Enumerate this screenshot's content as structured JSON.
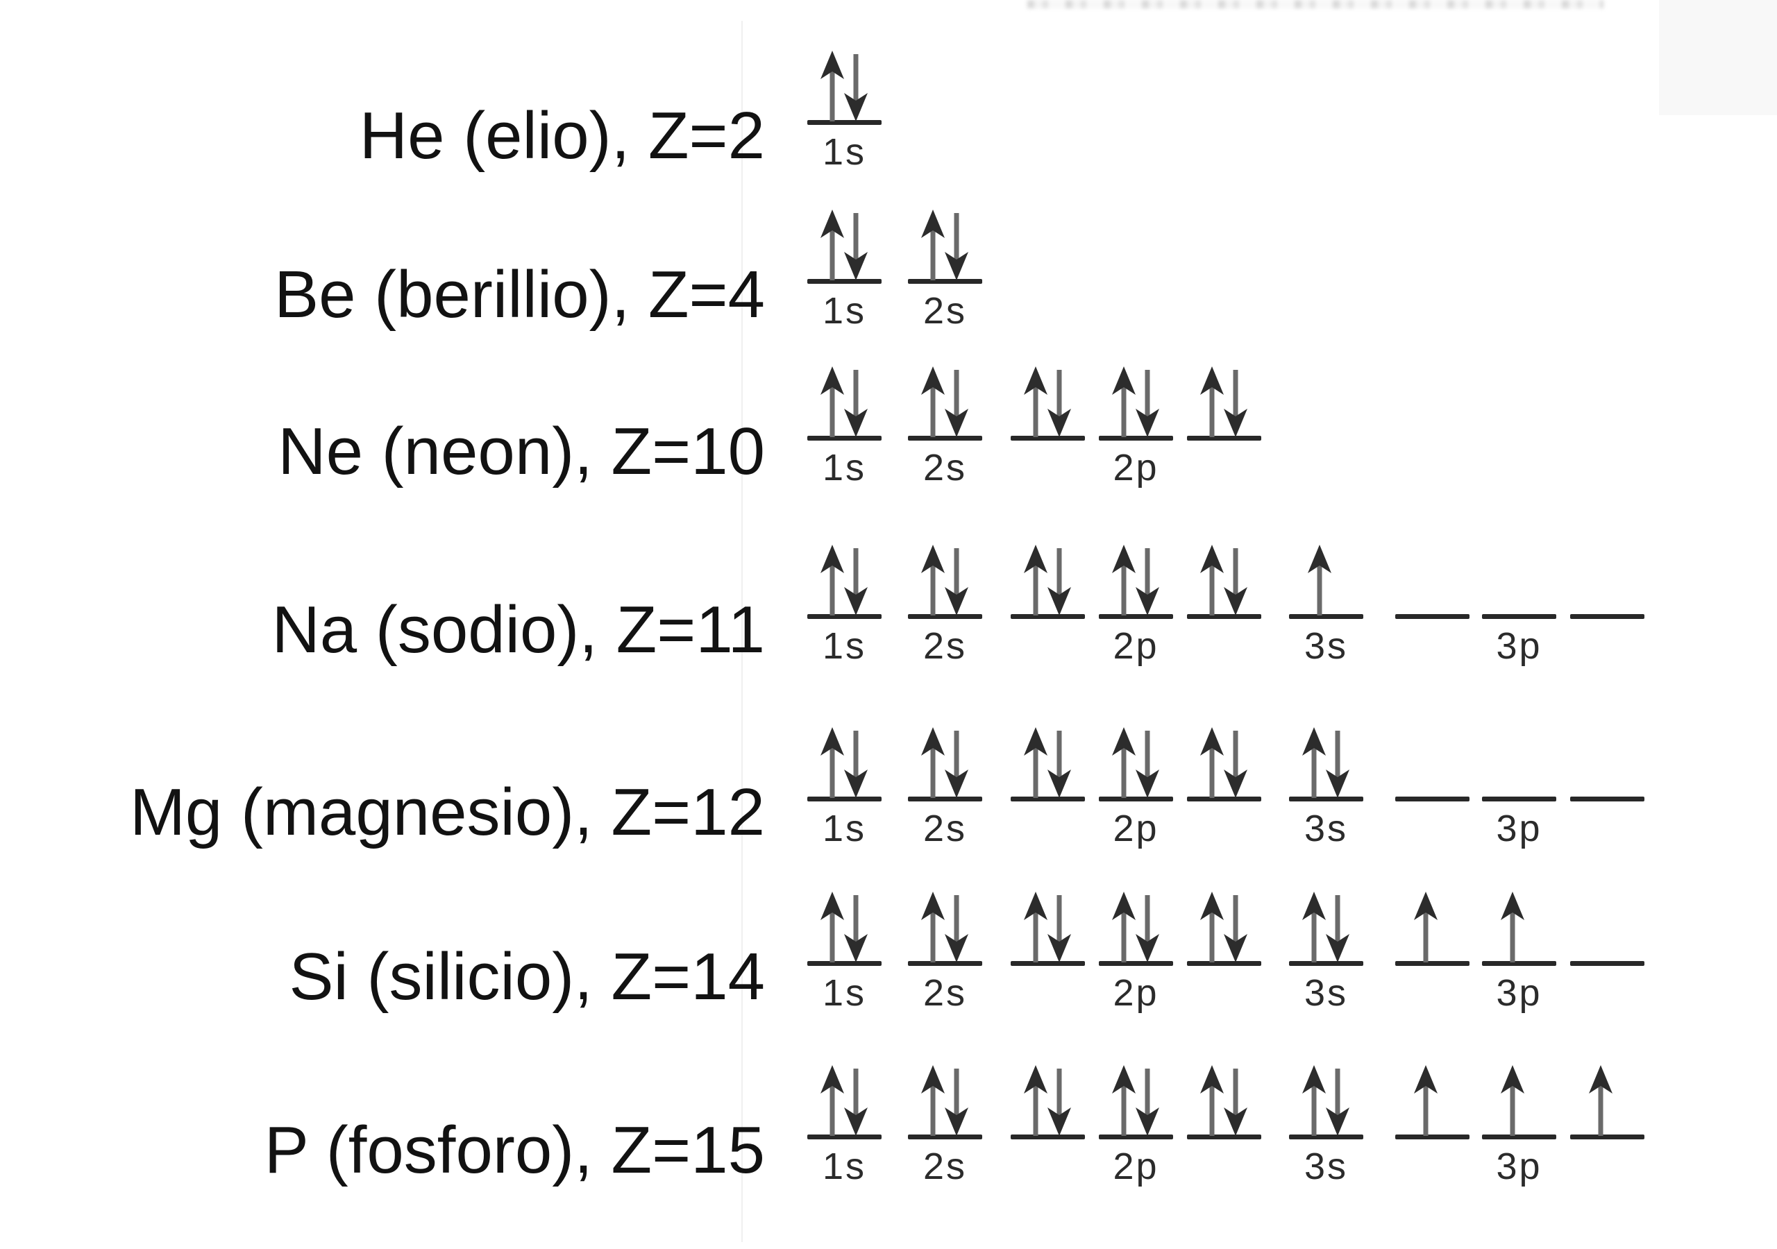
{
  "diagram": {
    "type": "orbital-box-diagram",
    "language": "it",
    "shells": [
      "1s",
      "2s",
      "2p",
      "3s",
      "3p"
    ],
    "columns": [
      {
        "id": "1s",
        "shell_label": "1s"
      },
      {
        "id": "2s",
        "shell_label": "2s"
      },
      {
        "id": "2p-1",
        "shell_label": null
      },
      {
        "id": "2p-2",
        "shell_label": "2p"
      },
      {
        "id": "2p-3",
        "shell_label": null
      },
      {
        "id": "3s",
        "shell_label": "3s"
      },
      {
        "id": "3p-1",
        "shell_label": null
      },
      {
        "id": "3p-2",
        "shell_label": "3p"
      },
      {
        "id": "3p-3",
        "shell_label": null
      }
    ],
    "rows": [
      {
        "symbol": "He",
        "label": "He (elio), Z=2",
        "z": 2,
        "fills": [
          "paired",
          null,
          null,
          null,
          null,
          null,
          null,
          null,
          null
        ]
      },
      {
        "symbol": "Be",
        "label": "Be (berillio), Z=4",
        "z": 4,
        "fills": [
          "paired",
          "paired",
          null,
          null,
          null,
          null,
          null,
          null,
          null
        ]
      },
      {
        "symbol": "Ne",
        "label": "Ne (neon), Z=10",
        "z": 10,
        "fills": [
          "paired",
          "paired",
          "paired",
          "paired",
          "paired",
          null,
          null,
          null,
          null
        ]
      },
      {
        "symbol": "Na",
        "label": "Na (sodio), Z=11",
        "z": 11,
        "fills": [
          "paired",
          "paired",
          "paired",
          "paired",
          "paired",
          "up",
          "empty",
          "empty",
          "empty"
        ]
      },
      {
        "symbol": "Mg",
        "label": "Mg (magnesio), Z=12",
        "z": 12,
        "fills": [
          "paired",
          "paired",
          "paired",
          "paired",
          "paired",
          "paired",
          "empty",
          "empty",
          "empty"
        ]
      },
      {
        "symbol": "Si",
        "label": "Si (silicio), Z=14",
        "z": 14,
        "fills": [
          "paired",
          "paired",
          "paired",
          "paired",
          "paired",
          "paired",
          "up",
          "up",
          "empty"
        ]
      },
      {
        "symbol": "P",
        "label": "P (fosforo), Z=15",
        "z": 15,
        "fills": [
          "paired",
          "paired",
          "paired",
          "paired",
          "paired",
          "paired",
          "up",
          "up",
          "up"
        ]
      }
    ],
    "colors": {
      "text": "#121212",
      "orbital_line": "#282828",
      "arrow_head": "#2c2c2c",
      "arrow_tail": "#6a6a6a",
      "shell_label": "#2b2b2b"
    }
  }
}
